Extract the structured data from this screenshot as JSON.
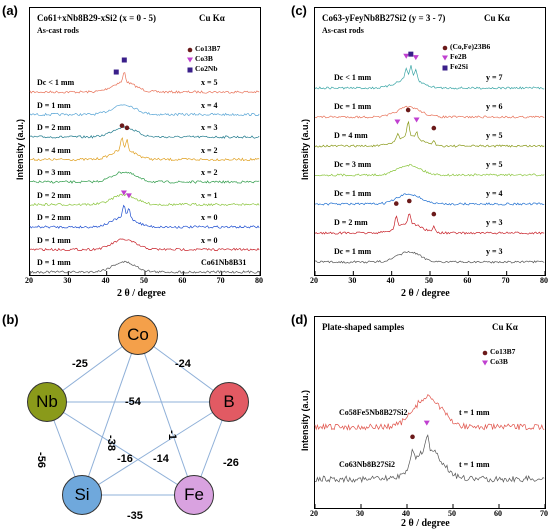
{
  "panel_a": {
    "letter": "(a)",
    "title": "Co61+xNb8B29-xSi2 (x = 0 - 5)",
    "subtitle": "As-cast rods",
    "radiation": "Cu Kα",
    "ylabel": "Intensity (a.u.)",
    "xlabel": "2 θ / degree",
    "legend": [
      {
        "label": "Co13B7",
        "marker": "circle",
        "color": "#6b1a1a"
      },
      {
        "label": "Co3B",
        "marker": "triangle",
        "color": "#c040d0"
      },
      {
        "label": "Co2Nb",
        "marker": "square",
        "color": "#3a1f8a"
      }
    ],
    "traces": [
      {
        "left": "Dc < 1 mm",
        "right": "x = 5",
        "color": "#e8735a"
      },
      {
        "left": "D = 1 mm",
        "right": "x = 4",
        "color": "#5aa6d6"
      },
      {
        "left": "D = 2 mm",
        "right": "x = 3",
        "color": "#1f7a8c"
      },
      {
        "left": "D = 4 mm",
        "right": "x = 2",
        "color": "#e0a020"
      },
      {
        "left": "D = 3 mm",
        "right": "x = 2",
        "color": "#2f9c4a"
      },
      {
        "left": "D = 2 mm",
        "right": "x = 1",
        "color": "#8cc63f"
      },
      {
        "left": "D = 2 mm",
        "right": "x = 0",
        "color": "#1f4fd0"
      },
      {
        "left": "D = 1 mm",
        "right": "x = 0",
        "color": "#c8222a"
      },
      {
        "left": "D = 1 mm",
        "right": "Co61Nb8B31",
        "color": "#555555"
      }
    ]
  },
  "panel_b": {
    "letter": "(b)",
    "nodes": [
      {
        "id": "Co",
        "color": "#f4a04a"
      },
      {
        "id": "B",
        "color": "#e25a63"
      },
      {
        "id": "Fe",
        "color": "#d9a2e0"
      },
      {
        "id": "Si",
        "color": "#6fa8dc"
      },
      {
        "id": "Nb",
        "color": "#8a9a1a"
      }
    ],
    "edges": [
      {
        "a": "Co",
        "b": "Nb",
        "label": "-25"
      },
      {
        "a": "Co",
        "b": "B",
        "label": "-24"
      },
      {
        "a": "Nb",
        "b": "B",
        "label": "-54"
      },
      {
        "a": "Co",
        "b": "Si",
        "label": "-38"
      },
      {
        "a": "Co",
        "b": "Fe",
        "label": "-1"
      },
      {
        "a": "Nb",
        "b": "Si",
        "label": "-56"
      },
      {
        "a": "Nb",
        "b": "Fe",
        "label": "-16"
      },
      {
        "a": "B",
        "b": "Si",
        "label": "-14"
      },
      {
        "a": "B",
        "b": "Fe",
        "label": "-26"
      },
      {
        "a": "Si",
        "b": "Fe",
        "label": "-35"
      }
    ]
  },
  "panel_c": {
    "letter": "(c)",
    "title": "Co63-yFeyNb8B27Si2 (y = 3 - 7)",
    "subtitle": "As-cast rods",
    "radiation": "Cu Kα",
    "ylabel": "Intensity (a.u.)",
    "xlabel": "2 θ / degree",
    "legend": [
      {
        "label": "(Co,Fe)23B6",
        "marker": "circle",
        "color": "#6b1a1a"
      },
      {
        "label": "Fe2B",
        "marker": "triangle",
        "color": "#c040d0"
      },
      {
        "label": "Fe2Si",
        "marker": "square",
        "color": "#3a1f8a"
      }
    ],
    "traces": [
      {
        "left": "Dc < 1 mm",
        "right": "y = 7",
        "color": "#3aa6a6"
      },
      {
        "left": "Dc = 1 mm",
        "right": "y = 6",
        "color": "#e8735a"
      },
      {
        "left": "D = 4 mm",
        "right": "y = 5",
        "color": "#8a9a1a"
      },
      {
        "left": "Dc = 3 mm",
        "right": "y = 5",
        "color": "#8cc63f"
      },
      {
        "left": "Dc = 1 mm",
        "right": "y = 4",
        "color": "#1f6fd0"
      },
      {
        "left": "D = 2 mm",
        "right": "y = 3",
        "color": "#c8222a"
      },
      {
        "left": "Dc = 1 mm",
        "right": "y = 3",
        "color": "#555555"
      }
    ]
  },
  "panel_d": {
    "letter": "(d)",
    "title": "Plate-shaped samples",
    "radiation": "Cu Kα",
    "ylabel": "Intensity (a.u.)",
    "xlabel": "2 θ / degree",
    "legend": [
      {
        "label": "Co13B7",
        "marker": "circle",
        "color": "#6b1a1a"
      },
      {
        "label": "Co3B",
        "marker": "triangle",
        "color": "#c040d0"
      }
    ],
    "traces": [
      {
        "left": "Co58Fe5Nb8B27Si2",
        "right": "t = 1 mm",
        "color": "#e0534a"
      },
      {
        "left": "Co63Nb8B27Si2",
        "right": "t = 1 mm",
        "color": "#555555"
      }
    ]
  },
  "chart_data": [
    {
      "type": "line",
      "panel": "a",
      "xlim": [
        20,
        80
      ],
      "xticks": [
        20,
        30,
        40,
        50,
        60,
        70,
        80
      ],
      "xlabel": "2 θ / degree",
      "ylabel": "Intensity (a.u.)"
    },
    {
      "type": "line",
      "panel": "c",
      "xlim": [
        20,
        80
      ],
      "xticks": [
        20,
        30,
        40,
        50,
        60,
        70,
        80
      ],
      "xlabel": "2 θ / degree",
      "ylabel": "Intensity (a.u.)"
    },
    {
      "type": "line",
      "panel": "d",
      "xlim": [
        20,
        70
      ],
      "xticks": [
        20,
        30,
        40,
        50,
        60,
        70
      ],
      "xlabel": "2 θ / degree",
      "ylabel": "Intensity (a.u.)"
    }
  ]
}
